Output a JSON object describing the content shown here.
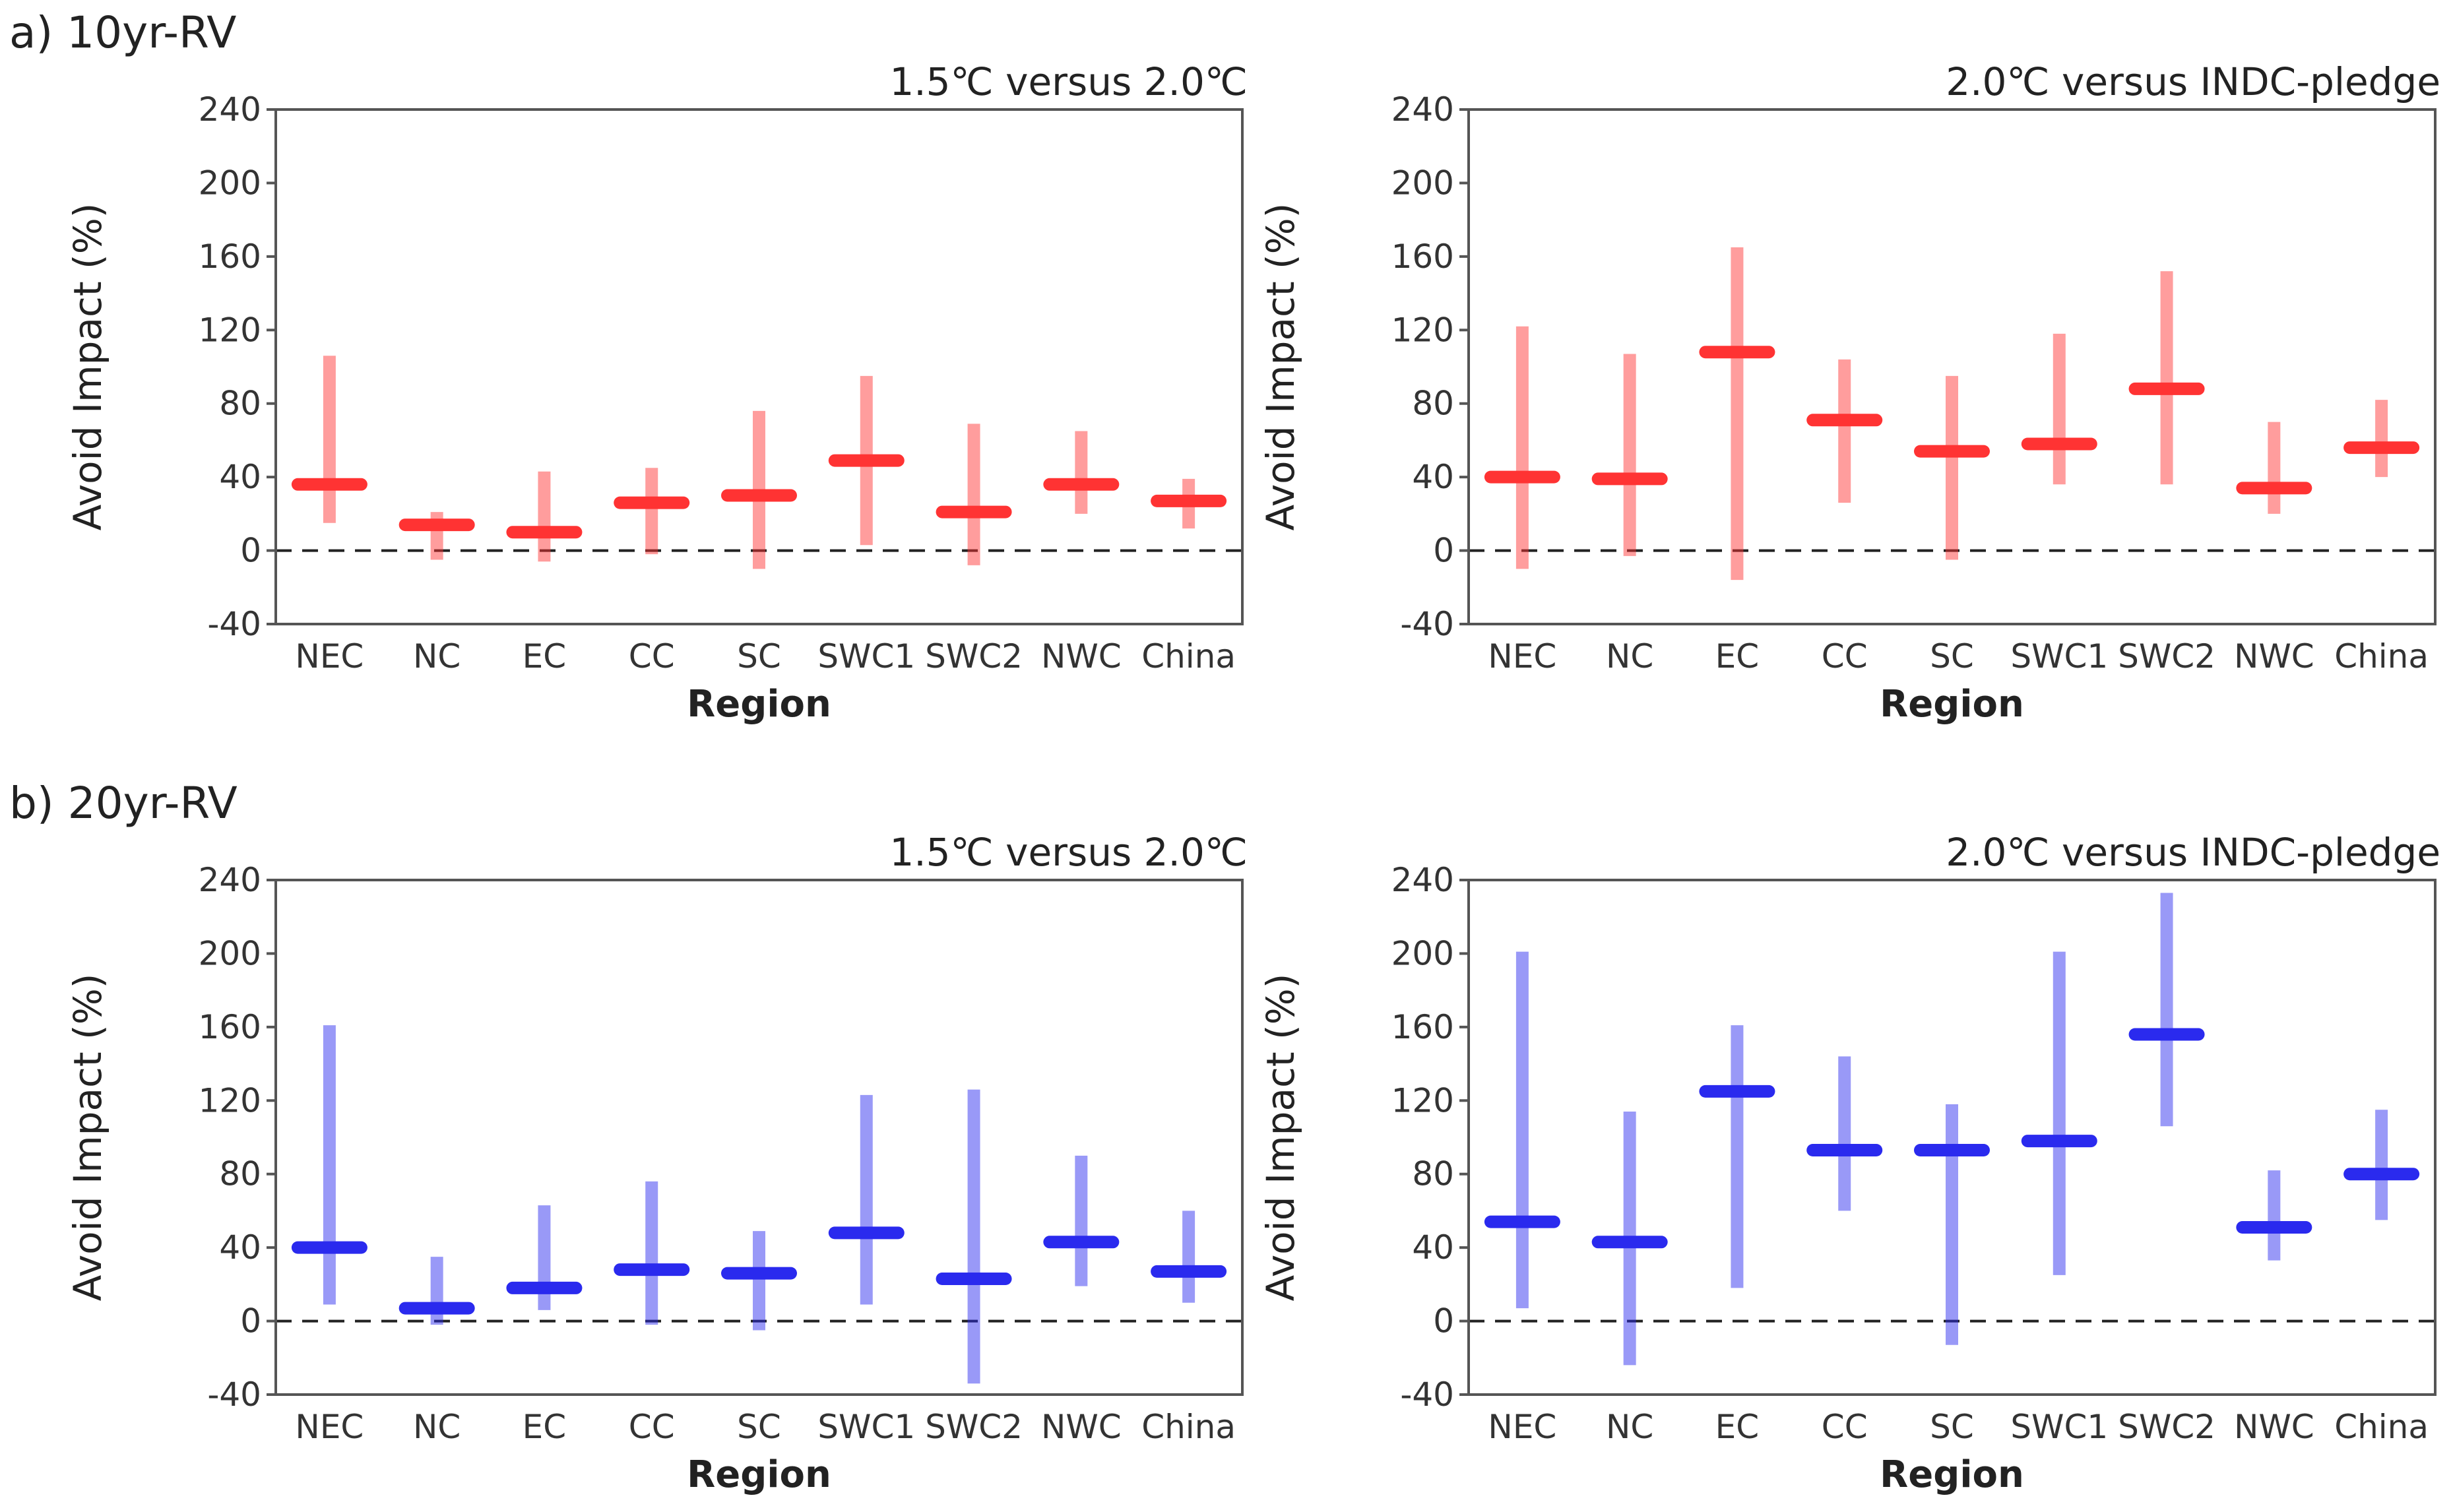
{
  "row_labels": [
    "a) 10yr-RV",
    "b) 20yr-RV"
  ],
  "chart_data": [
    {
      "type": "range",
      "row": 0,
      "col": 0,
      "color": "#ff3333",
      "title": "1.5℃ versus 2.0℃",
      "xlabel": "Region",
      "ylabel": "Avoid Impact (%)",
      "ylim": [
        -40,
        240
      ],
      "yticks": [
        -40,
        0,
        40,
        80,
        120,
        160,
        200,
        240
      ],
      "reference_line": 0,
      "categories": [
        "NEC",
        "NC",
        "EC",
        "CC",
        "SC",
        "SWC1",
        "SWC2",
        "NWC",
        "China"
      ],
      "low": [
        15,
        -5,
        -6,
        -2,
        -10,
        3,
        -8,
        20,
        12
      ],
      "high": [
        106,
        21,
        43,
        45,
        76,
        95,
        69,
        65,
        39
      ],
      "median": [
        36,
        14,
        10,
        26,
        30,
        49,
        21,
        36,
        27
      ]
    },
    {
      "type": "range",
      "row": 0,
      "col": 1,
      "color": "#ff3333",
      "title": "2.0℃ versus INDC-pledge",
      "xlabel": "Region",
      "ylabel": "Avoid Impact (%)",
      "ylim": [
        -40,
        240
      ],
      "yticks": [
        -40,
        0,
        40,
        80,
        120,
        160,
        200,
        240
      ],
      "reference_line": 0,
      "categories": [
        "NEC",
        "NC",
        "EC",
        "CC",
        "SC",
        "SWC1",
        "SWC2",
        "NWC",
        "China"
      ],
      "low": [
        -10,
        -3,
        -16,
        26,
        -5,
        36,
        36,
        20,
        40
      ],
      "high": [
        122,
        107,
        165,
        104,
        95,
        118,
        152,
        70,
        82
      ],
      "median": [
        40,
        39,
        108,
        71,
        54,
        58,
        88,
        34,
        56
      ]
    },
    {
      "type": "range",
      "row": 1,
      "col": 0,
      "color": "#2a2aee",
      "title": "1.5℃ versus 2.0℃",
      "xlabel": "Region",
      "ylabel": "Avoid Impact (%)",
      "ylim": [
        -40,
        240
      ],
      "yticks": [
        -40,
        0,
        40,
        80,
        120,
        160,
        200,
        240
      ],
      "reference_line": 0,
      "categories": [
        "NEC",
        "NC",
        "EC",
        "CC",
        "SC",
        "SWC1",
        "SWC2",
        "NWC",
        "China"
      ],
      "low": [
        9,
        -2,
        6,
        -2,
        -5,
        9,
        -34,
        19,
        10
      ],
      "high": [
        161,
        35,
        63,
        76,
        49,
        123,
        126,
        90,
        60
      ],
      "median": [
        40,
        7,
        18,
        28,
        26,
        48,
        23,
        43,
        27
      ]
    },
    {
      "type": "range",
      "row": 1,
      "col": 1,
      "color": "#2a2aee",
      "title": "2.0℃ versus INDC-pledge",
      "xlabel": "Region",
      "ylabel": "Avoid Impact (%)",
      "ylim": [
        -40,
        240
      ],
      "yticks": [
        -40,
        0,
        40,
        80,
        120,
        160,
        200,
        240
      ],
      "reference_line": 0,
      "categories": [
        "NEC",
        "NC",
        "EC",
        "CC",
        "SC",
        "SWC1",
        "SWC2",
        "NWC",
        "China"
      ],
      "low": [
        7,
        -24,
        18,
        60,
        -13,
        25,
        106,
        33,
        55
      ],
      "high": [
        201,
        114,
        161,
        144,
        118,
        201,
        233,
        82,
        115
      ],
      "median": [
        54,
        43,
        125,
        93,
        93,
        98,
        156,
        51,
        80
      ]
    }
  ]
}
